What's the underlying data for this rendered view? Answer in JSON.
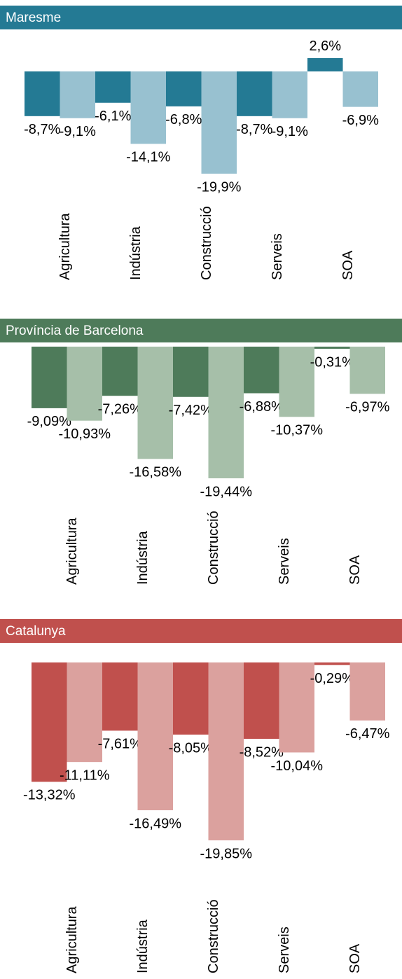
{
  "chart_data": [
    {
      "type": "bar",
      "title": "Maresme",
      "color": "#247a94",
      "categories": [
        "Agricultura",
        "Indústria",
        "Construcció",
        "Serveis",
        "SOA"
      ],
      "series": [
        {
          "color": "#247a94",
          "values": [
            -8.7,
            -6.1,
            -6.8,
            -8.7,
            2.6
          ],
          "value_labels": [
            "-8,7%",
            "-6,1%",
            "-6,8%",
            "-8,7%",
            "2,6%"
          ]
        },
        {
          "color": "#98c1d0",
          "values": [
            -9.1,
            -14.1,
            -19.9,
            -9.1,
            -6.9
          ],
          "value_labels": [
            "-9,1%",
            "-14,1%",
            "-19,9%",
            "-9,1%",
            "-6,9%"
          ]
        }
      ]
    },
    {
      "type": "bar",
      "title": "Província de Barcelona",
      "color": "#4e7b5a",
      "categories": [
        "Agricultura",
        "Indústria",
        "Construcció",
        "Serveis",
        "SOA"
      ],
      "series": [
        {
          "color": "#4e7b5a",
          "values": [
            -9.09,
            -7.26,
            -7.42,
            -6.88,
            -0.31
          ],
          "value_labels": [
            "-9,09%",
            "-7,26%",
            "-7,42%",
            "-6,88%",
            "-0,31%"
          ]
        },
        {
          "color": "#a6bfa9",
          "values": [
            -10.93,
            -16.58,
            -19.44,
            -10.37,
            -6.97
          ],
          "value_labels": [
            "-10,93%",
            "-16,58%",
            "-19,44%",
            "-10,37%",
            "-6,97%"
          ]
        }
      ]
    },
    {
      "type": "bar",
      "title": "Catalunya",
      "color": "#c0504d",
      "categories": [
        "Agricultura",
        "Indústria",
        "Construcció",
        "Serveis",
        "SOA"
      ],
      "series": [
        {
          "color": "#c0504d",
          "values": [
            -13.32,
            -7.61,
            -8.05,
            -8.52,
            -0.29
          ],
          "value_labels": [
            "-13,32%",
            "-7,61%",
            "-8,05%",
            "-8,52%",
            "-0,29%"
          ]
        },
        {
          "color": "#dba19e",
          "values": [
            -11.11,
            -16.49,
            -19.85,
            -10.04,
            -6.47
          ],
          "value_labels": [
            "-11,11%",
            "-16,49%",
            "-19,85%",
            "-10,04%",
            "-6,47%"
          ]
        }
      ]
    }
  ]
}
